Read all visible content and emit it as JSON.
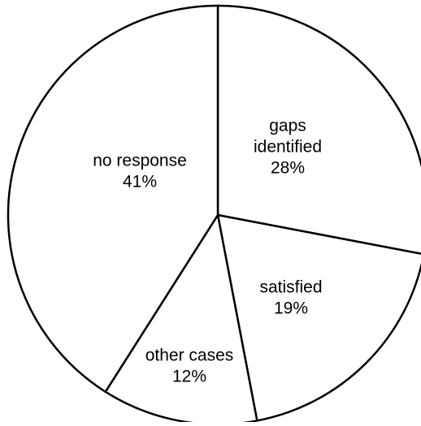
{
  "chart_data": {
    "type": "pie",
    "title": "",
    "legend": "none",
    "slices": [
      {
        "label": "gaps identified",
        "label_lines": [
          "gaps",
          "identified"
        ],
        "value": 28,
        "value_label": "28%"
      },
      {
        "label": "satisfied",
        "label_lines": [
          "satisfied"
        ],
        "value": 19,
        "value_label": "19%"
      },
      {
        "label": "other cases",
        "label_lines": [
          "other cases"
        ],
        "value": 12,
        "value_label": "12%"
      },
      {
        "label": "no response",
        "label_lines": [
          "no response"
        ],
        "value": 41,
        "value_label": "41%"
      }
    ],
    "colors": {
      "fill": "#ffffff",
      "stroke": "#000000"
    }
  }
}
